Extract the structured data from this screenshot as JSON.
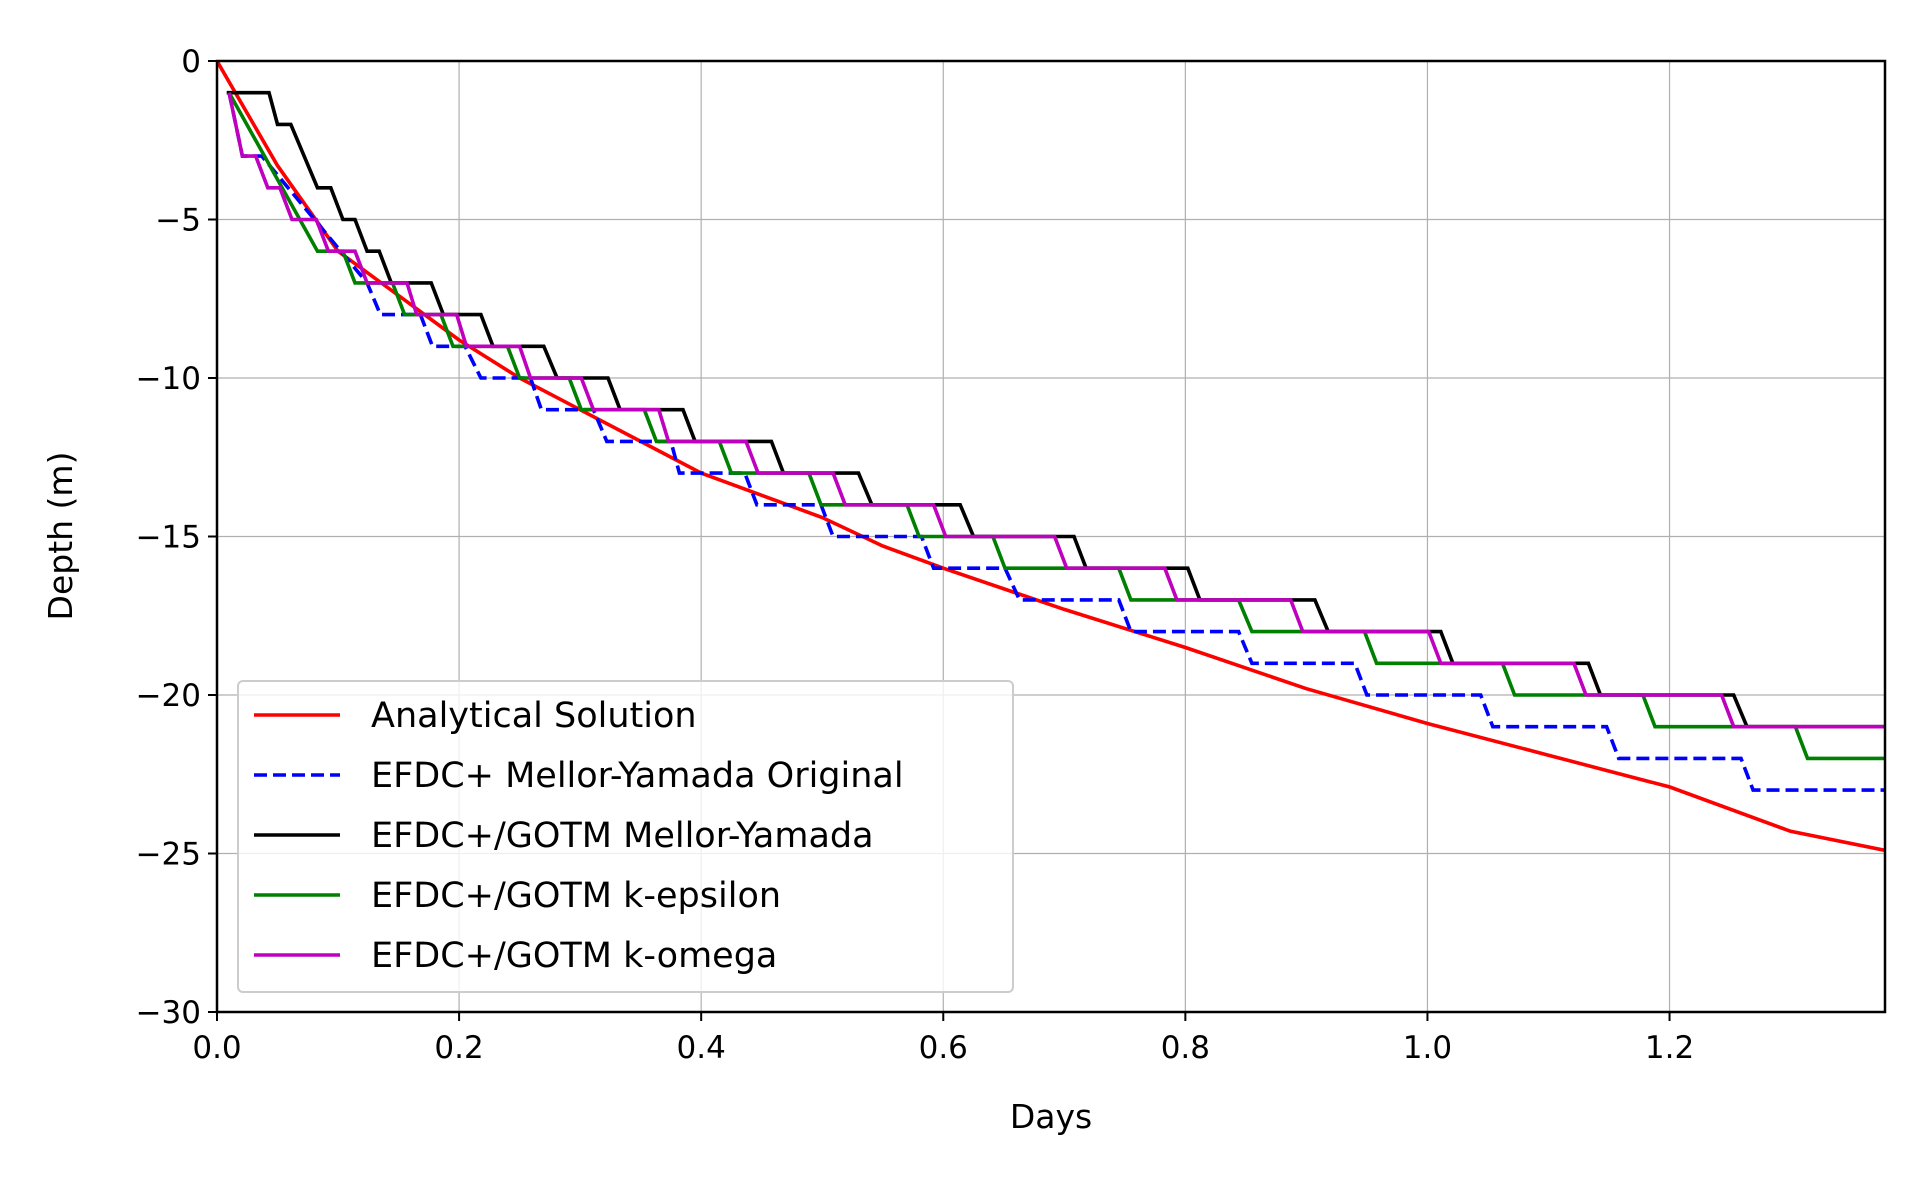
{
  "chart_data": {
    "type": "line",
    "title": "",
    "xlabel": "Days",
    "ylabel": "Depth (m)",
    "xlim": [
      0,
      1.378
    ],
    "ylim": [
      -30,
      0
    ],
    "xticks": [
      0.0,
      0.2,
      0.4,
      0.6,
      0.8,
      1.0,
      1.2
    ],
    "xtick_labels": [
      "0.0",
      "0.2",
      "0.4",
      "0.6",
      "0.8",
      "1.0",
      "1.2"
    ],
    "yticks": [
      0,
      -5,
      -10,
      -15,
      -20,
      -25,
      -30
    ],
    "ytick_labels": [
      "0",
      "−5",
      "−10",
      "−15",
      "−20",
      "−25",
      "−30"
    ],
    "grid": true,
    "legend_position": "lower-left",
    "series": [
      {
        "name": "Analytical Solution",
        "color": "#ff0000",
        "dash": "solid",
        "points": [
          [
            0,
            0
          ],
          [
            0.05,
            -3.3
          ],
          [
            0.1,
            -6.0
          ],
          [
            0.15,
            -7.4
          ],
          [
            0.2,
            -8.8
          ],
          [
            0.25,
            -10.0
          ],
          [
            0.3,
            -11.0
          ],
          [
            0.35,
            -12.0
          ],
          [
            0.4,
            -13.0
          ],
          [
            0.45,
            -13.7
          ],
          [
            0.5,
            -14.4
          ],
          [
            0.55,
            -15.3
          ],
          [
            0.6,
            -16.0
          ],
          [
            0.7,
            -17.3
          ],
          [
            0.8,
            -18.5
          ],
          [
            0.9,
            -19.8
          ],
          [
            1.0,
            -20.9
          ],
          [
            1.1,
            -21.9
          ],
          [
            1.15,
            -22.4
          ],
          [
            1.2,
            -22.9
          ],
          [
            1.3,
            -24.3
          ],
          [
            1.378,
            -24.9
          ]
        ]
      },
      {
        "name": "EFDC+ Mellor-Yamada Original",
        "color": "#0000ff",
        "dash": "dashed",
        "points": [
          [
            0.01,
            -1
          ],
          [
            0.021,
            -3
          ],
          [
            0.037,
            -3
          ],
          [
            0.124,
            -7
          ],
          [
            0.135,
            -8
          ],
          [
            0.168,
            -8
          ],
          [
            0.178,
            -9
          ],
          [
            0.205,
            -9
          ],
          [
            0.218,
            -10
          ],
          [
            0.259,
            -10
          ],
          [
            0.268,
            -11
          ],
          [
            0.311,
            -11
          ],
          [
            0.322,
            -12
          ],
          [
            0.375,
            -12
          ],
          [
            0.382,
            -13
          ],
          [
            0.436,
            -13
          ],
          [
            0.446,
            -14
          ],
          [
            0.499,
            -14
          ],
          [
            0.509,
            -15
          ],
          [
            0.582,
            -15
          ],
          [
            0.592,
            -16
          ],
          [
            0.651,
            -16
          ],
          [
            0.663,
            -17
          ],
          [
            0.745,
            -17
          ],
          [
            0.755,
            -18
          ],
          [
            0.844,
            -18
          ],
          [
            0.855,
            -19
          ],
          [
            0.94,
            -19
          ],
          [
            0.95,
            -20
          ],
          [
            1.044,
            -20
          ],
          [
            1.054,
            -21
          ],
          [
            1.148,
            -21
          ],
          [
            1.158,
            -22
          ],
          [
            1.259,
            -22
          ],
          [
            1.269,
            -23
          ],
          [
            1.378,
            -23
          ]
        ]
      },
      {
        "name": "EFDC+/GOTM Mellor-Yamada",
        "color": "#000000",
        "dash": "solid",
        "points": [
          [
            0.008,
            -1
          ],
          [
            0.043,
            -1
          ],
          [
            0.05,
            -2
          ],
          [
            0.061,
            -2
          ],
          [
            0.083,
            -4
          ],
          [
            0.094,
            -4
          ],
          [
            0.104,
            -5
          ],
          [
            0.114,
            -5
          ],
          [
            0.124,
            -6
          ],
          [
            0.134,
            -6
          ],
          [
            0.144,
            -7
          ],
          [
            0.177,
            -7
          ],
          [
            0.187,
            -8
          ],
          [
            0.218,
            -8
          ],
          [
            0.228,
            -9
          ],
          [
            0.27,
            -9
          ],
          [
            0.281,
            -10
          ],
          [
            0.323,
            -10
          ],
          [
            0.333,
            -11
          ],
          [
            0.385,
            -11
          ],
          [
            0.395,
            -12
          ],
          [
            0.458,
            -12
          ],
          [
            0.468,
            -13
          ],
          [
            0.53,
            -13
          ],
          [
            0.541,
            -14
          ],
          [
            0.614,
            -14
          ],
          [
            0.625,
            -15
          ],
          [
            0.708,
            -15
          ],
          [
            0.718,
            -16
          ],
          [
            0.802,
            -16
          ],
          [
            0.812,
            -17
          ],
          [
            0.907,
            -17
          ],
          [
            0.918,
            -18
          ],
          [
            1.011,
            -18
          ],
          [
            1.021,
            -19
          ],
          [
            1.133,
            -19
          ],
          [
            1.143,
            -20
          ],
          [
            1.253,
            -20
          ],
          [
            1.264,
            -21
          ],
          [
            1.378,
            -21
          ]
        ]
      },
      {
        "name": "EFDC+/GOTM k-epsilon",
        "color": "#008000",
        "dash": "solid",
        "points": [
          [
            0.01,
            -1
          ],
          [
            0.083,
            -6
          ],
          [
            0.104,
            -6
          ],
          [
            0.114,
            -7
          ],
          [
            0.145,
            -7
          ],
          [
            0.155,
            -8
          ],
          [
            0.185,
            -8
          ],
          [
            0.195,
            -9
          ],
          [
            0.24,
            -9
          ],
          [
            0.25,
            -10
          ],
          [
            0.291,
            -10
          ],
          [
            0.301,
            -11
          ],
          [
            0.353,
            -11
          ],
          [
            0.363,
            -12
          ],
          [
            0.415,
            -12
          ],
          [
            0.425,
            -13
          ],
          [
            0.489,
            -13
          ],
          [
            0.499,
            -14
          ],
          [
            0.57,
            -14
          ],
          [
            0.58,
            -15
          ],
          [
            0.641,
            -15
          ],
          [
            0.651,
            -16
          ],
          [
            0.745,
            -16
          ],
          [
            0.755,
            -17
          ],
          [
            0.844,
            -17
          ],
          [
            0.855,
            -18
          ],
          [
            0.948,
            -18
          ],
          [
            0.958,
            -19
          ],
          [
            1.062,
            -19
          ],
          [
            1.072,
            -20
          ],
          [
            1.178,
            -20
          ],
          [
            1.188,
            -21
          ],
          [
            1.304,
            -21
          ],
          [
            1.314,
            -22
          ],
          [
            1.378,
            -22
          ]
        ]
      },
      {
        "name": "EFDC+/GOTM k-omega",
        "color": "#bf00bf",
        "dash": "solid",
        "points": [
          [
            0.01,
            -1
          ],
          [
            0.021,
            -3
          ],
          [
            0.032,
            -3
          ],
          [
            0.042,
            -4
          ],
          [
            0.052,
            -4
          ],
          [
            0.062,
            -5
          ],
          [
            0.082,
            -5
          ],
          [
            0.092,
            -6
          ],
          [
            0.114,
            -6
          ],
          [
            0.124,
            -7
          ],
          [
            0.157,
            -7
          ],
          [
            0.165,
            -8
          ],
          [
            0.198,
            -8
          ],
          [
            0.206,
            -9
          ],
          [
            0.25,
            -9
          ],
          [
            0.259,
            -10
          ],
          [
            0.301,
            -10
          ],
          [
            0.311,
            -11
          ],
          [
            0.365,
            -11
          ],
          [
            0.373,
            -12
          ],
          [
            0.437,
            -12
          ],
          [
            0.447,
            -13
          ],
          [
            0.509,
            -13
          ],
          [
            0.519,
            -14
          ],
          [
            0.592,
            -14
          ],
          [
            0.602,
            -15
          ],
          [
            0.692,
            -15
          ],
          [
            0.702,
            -16
          ],
          [
            0.783,
            -16
          ],
          [
            0.793,
            -17
          ],
          [
            0.887,
            -17
          ],
          [
            0.897,
            -18
          ],
          [
            1.001,
            -18
          ],
          [
            1.011,
            -19
          ],
          [
            1.121,
            -19
          ],
          [
            1.131,
            -20
          ],
          [
            1.243,
            -20
          ],
          [
            1.253,
            -21
          ],
          [
            1.378,
            -21
          ]
        ]
      }
    ]
  }
}
